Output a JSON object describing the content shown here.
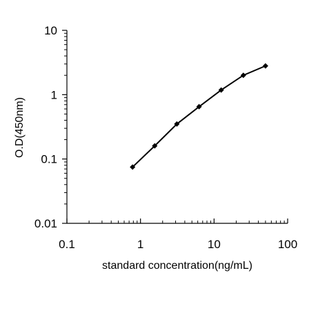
{
  "chart_data": {
    "type": "line",
    "title": "",
    "xlabel": "standard concentration(ng/mL)",
    "ylabel": "O.D(450nm)",
    "xscale": "log",
    "yscale": "log",
    "xlim": [
      0.1,
      100
    ],
    "ylim": [
      0.01,
      10
    ],
    "x_ticks": [
      "0.1",
      "1",
      "10",
      "100"
    ],
    "y_ticks": [
      "0.01",
      "0.1",
      "1",
      "10"
    ],
    "grid": false,
    "legend": "none",
    "marker": "diamond",
    "line_color": "#000000",
    "series": [
      {
        "x": [
          0.78,
          1.56,
          3.12,
          6.25,
          12.5,
          25,
          50
        ],
        "y": [
          0.075,
          0.16,
          0.35,
          0.65,
          1.18,
          2.0,
          2.8
        ]
      }
    ]
  }
}
